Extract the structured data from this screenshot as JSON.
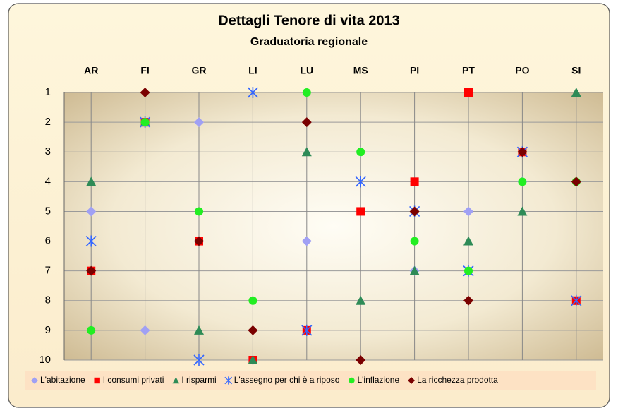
{
  "chart_data": {
    "type": "scatter",
    "title": "Dettagli Tenore di vita 2013",
    "subtitle": "Graduatoria regionale",
    "categories": [
      "AR",
      "FI",
      "GR",
      "LI",
      "LU",
      "MS",
      "PI",
      "PT",
      "PO",
      "SI"
    ],
    "ylim": [
      1,
      10
    ],
    "yticks": [
      1,
      2,
      3,
      4,
      5,
      6,
      7,
      8,
      9,
      10
    ],
    "y_reversed": true,
    "grid": true,
    "legend": "bottom",
    "series": [
      {
        "name": "L'abitazione",
        "color": "#a0a0f4",
        "marker": "diamond",
        "values": [
          5,
          9,
          2,
          10,
          6,
          3,
          7,
          5,
          4,
          8
        ]
      },
      {
        "name": "I consumi privati",
        "color": "#ff0000",
        "marker": "square",
        "values": [
          7,
          2,
          6,
          10,
          9,
          5,
          4,
          1,
          3,
          8
        ]
      },
      {
        "name": "I risparmi",
        "color": "#2e8b57",
        "marker": "triangle",
        "values": [
          4,
          2,
          9,
          10,
          3,
          8,
          7,
          6,
          5,
          1
        ]
      },
      {
        "name": "L'assegno per chi è a riposo",
        "color": "#3366ff",
        "marker": "star",
        "values": [
          6,
          2,
          10,
          1,
          9,
          4,
          5,
          7,
          3,
          8
        ]
      },
      {
        "name": "L'inflazione",
        "color": "#22ee22",
        "marker": "circle",
        "values": [
          9,
          2,
          5,
          8,
          1,
          3,
          6,
          7,
          4,
          4
        ]
      },
      {
        "name": "La ricchezza prodotta",
        "color": "#7a0000",
        "marker": "diamond",
        "values": [
          7,
          1,
          6,
          9,
          2,
          10,
          5,
          8,
          3,
          4
        ]
      }
    ]
  }
}
